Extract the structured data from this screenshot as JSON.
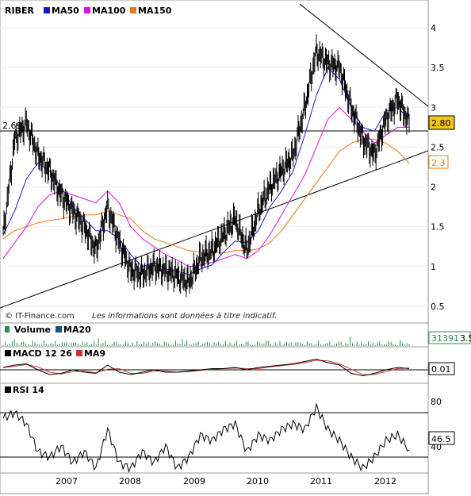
{
  "colors": {
    "price": "#000000",
    "ma50": "#1a1acc",
    "ma100": "#dd11dd",
    "ma150": "#ee7711",
    "volume": "#2e8b57",
    "vol_ma20": "#1a4f80",
    "macd": "#000000",
    "ma9": "#cc3333",
    "rsi": "#000000",
    "price_tag_bg": "#f5c518",
    "ma150_tag": "#ee7711",
    "vol_tag": "#2e8b57"
  },
  "price_panel": {
    "legend": [
      "RIBER",
      "MA50",
      "MA100",
      "MA150"
    ],
    "y_ticks": [
      "4",
      "3.5",
      "3",
      "2.5",
      "2",
      "1.5",
      "1",
      "0.5"
    ],
    "left_level_label": "2.69",
    "last_price_tag": "2.80",
    "ma150_tag": "2.3",
    "credit_left": "© IT-Finance.com",
    "credit_right": "Les informations sont données à titre indicatif."
  },
  "volume_panel": {
    "legend": [
      "Volume",
      "MA20"
    ],
    "value_tag": "31391",
    "value_tag_suffix": "3.5"
  },
  "macd_panel": {
    "legend": [
      "MACD 12 26",
      "MA9"
    ],
    "value_tag": "0.01"
  },
  "rsi_panel": {
    "legend": [
      "RSI 14"
    ],
    "y_ticks": [
      "80",
      "40"
    ],
    "value_tag": "46.5"
  },
  "x_axis": {
    "labels": [
      "2007",
      "2008",
      "2009",
      "2010",
      "2011",
      "2012"
    ]
  },
  "chart_data": {
    "type": "line",
    "x": [
      "2006-07",
      "2006-09",
      "2006-11",
      "2007-01",
      "2007-03",
      "2007-05",
      "2007-07",
      "2007-09",
      "2007-11",
      "2008-01",
      "2008-03",
      "2008-05",
      "2008-07",
      "2008-09",
      "2008-11",
      "2009-01",
      "2009-03",
      "2009-05",
      "2009-07",
      "2009-09",
      "2009-11",
      "2010-01",
      "2010-03",
      "2010-05",
      "2010-07",
      "2010-09",
      "2010-11",
      "2011-01",
      "2011-03",
      "2011-05",
      "2011-07",
      "2011-09",
      "2011-11",
      "2012-01",
      "2012-03",
      "2012-05"
    ],
    "series": [
      {
        "name": "RIBER",
        "values": [
          1.4,
          2.6,
          2.8,
          2.4,
          2.2,
          1.9,
          1.7,
          1.5,
          1.2,
          1.75,
          1.3,
          0.95,
          0.9,
          1.0,
          0.95,
          0.88,
          0.8,
          1.1,
          1.2,
          1.4,
          1.6,
          1.2,
          1.7,
          2.0,
          2.2,
          2.4,
          3.0,
          3.7,
          3.55,
          3.5,
          3.0,
          2.6,
          2.4,
          2.85,
          3.1,
          2.8
        ]
      },
      {
        "name": "MA50",
        "values": [
          1.4,
          1.7,
          2.1,
          2.3,
          2.2,
          2.0,
          1.75,
          1.6,
          1.45,
          1.45,
          1.35,
          1.15,
          1.0,
          1.05,
          0.97,
          0.94,
          0.9,
          0.97,
          1.02,
          1.18,
          1.32,
          1.3,
          1.45,
          1.75,
          1.95,
          2.2,
          2.65,
          3.15,
          3.5,
          3.35,
          3.0,
          2.75,
          2.7,
          2.95,
          3.0,
          2.85
        ]
      },
      {
        "name": "MA100",
        "values": [
          1.1,
          1.3,
          1.5,
          1.75,
          1.9,
          1.95,
          1.9,
          1.85,
          1.8,
          1.95,
          1.8,
          1.5,
          1.35,
          1.25,
          1.15,
          1.08,
          1.0,
          1.02,
          1.05,
          1.1,
          1.15,
          1.1,
          1.2,
          1.4,
          1.65,
          1.9,
          2.15,
          2.5,
          2.85,
          3.0,
          2.85,
          2.7,
          2.55,
          2.65,
          2.75,
          2.75
        ]
      },
      {
        "name": "MA150",
        "values": [
          1.35,
          1.45,
          1.5,
          1.55,
          1.58,
          1.6,
          1.63,
          1.65,
          1.65,
          1.7,
          1.65,
          1.6,
          1.45,
          1.35,
          1.3,
          1.25,
          1.2,
          1.18,
          1.17,
          1.17,
          1.2,
          1.2,
          1.22,
          1.3,
          1.45,
          1.65,
          1.85,
          2.05,
          2.25,
          2.45,
          2.55,
          2.6,
          2.6,
          2.55,
          2.45,
          2.3
        ]
      }
    ],
    "ylim": [
      0.4,
      4.4
    ],
    "macd": {
      "values": [
        0.02,
        0.04,
        0.05,
        0.0,
        -0.04,
        -0.03,
        0.0,
        -0.02,
        -0.03,
        0.04,
        -0.02,
        -0.04,
        -0.02,
        0.0,
        -0.02,
        -0.02,
        -0.01,
        0.0,
        0.01,
        0.01,
        0.02,
        0.0,
        0.02,
        0.03,
        0.04,
        0.05,
        0.07,
        0.09,
        0.06,
        0.04,
        -0.03,
        -0.05,
        -0.03,
        0.0,
        0.02,
        0.01
      ],
      "ylim": [
        -0.12,
        0.12
      ]
    },
    "rsi": {
      "values": [
        75,
        80,
        70,
        45,
        40,
        50,
        35,
        45,
        30,
        65,
        35,
        30,
        45,
        35,
        50,
        30,
        40,
        60,
        55,
        65,
        70,
        45,
        60,
        55,
        65,
        70,
        65,
        85,
        65,
        55,
        40,
        30,
        40,
        55,
        60,
        46.5
      ],
      "ylim": [
        20,
        100
      ],
      "levels": [
        80,
        40
      ]
    }
  }
}
